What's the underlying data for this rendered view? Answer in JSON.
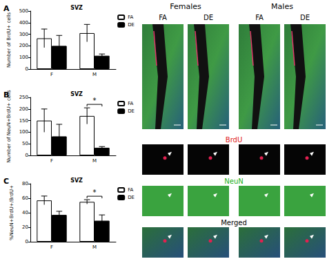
{
  "chart_data": [
    {
      "panel": "A",
      "type": "bar",
      "title": "SVZ",
      "y_label": "Number of BrdU+ cells",
      "categories": [
        "F",
        "M"
      ],
      "series": [
        {
          "name": "FA",
          "color": "#ffffff",
          "values": [
            265,
            310
          ],
          "errors": [
            80,
            75
          ]
        },
        {
          "name": "DE",
          "color": "#000000",
          "values": [
            200,
            115
          ],
          "errors": [
            90,
            15
          ]
        }
      ],
      "ylim": [
        0,
        500
      ],
      "yticks": [
        0,
        100,
        200,
        300,
        400,
        500
      ],
      "legend": "upper right",
      "grid": false
    },
    {
      "panel": "B",
      "type": "bar",
      "title": "SVZ",
      "y_label": "Number of NeuN+BrdU+ cells",
      "categories": [
        "F",
        "M"
      ],
      "series": [
        {
          "name": "FA",
          "color": "#ffffff",
          "values": [
            150,
            170
          ],
          "errors": [
            50,
            35
          ]
        },
        {
          "name": "DE",
          "color": "#000000",
          "values": [
            82,
            33
          ],
          "errors": [
            52,
            5
          ]
        }
      ],
      "ylim": [
        0,
        250
      ],
      "yticks": [
        0,
        50,
        100,
        150,
        200,
        250
      ],
      "annotations": [
        {
          "category": "M",
          "text": "*"
        }
      ],
      "legend": "upper right",
      "grid": false
    },
    {
      "panel": "C",
      "type": "bar",
      "title": "SVZ",
      "y_label": "%NeuN+BrdU+/BrdU+",
      "categories": [
        "F",
        "M"
      ],
      "series": [
        {
          "name": "FA",
          "color": "#ffffff",
          "values": [
            57,
            55
          ],
          "errors": [
            6,
            3
          ]
        },
        {
          "name": "DE",
          "color": "#000000",
          "values": [
            37,
            29
          ],
          "errors": [
            5,
            8
          ]
        }
      ],
      "ylim": [
        0,
        80
      ],
      "yticks": [
        0,
        20,
        40,
        60,
        80
      ],
      "annotations": [
        {
          "category": "M",
          "text": "*"
        }
      ],
      "legend": "upper right",
      "grid": false
    }
  ],
  "micrographs": {
    "groups": [
      "Females",
      "Males"
    ],
    "columns": [
      "FA",
      "DE"
    ],
    "rows": [
      {
        "label": "BrdU",
        "color": "#e02020"
      },
      {
        "label": "NeuN",
        "color": "#20b020"
      },
      {
        "label": "Merged",
        "color": "#000000"
      }
    ]
  }
}
